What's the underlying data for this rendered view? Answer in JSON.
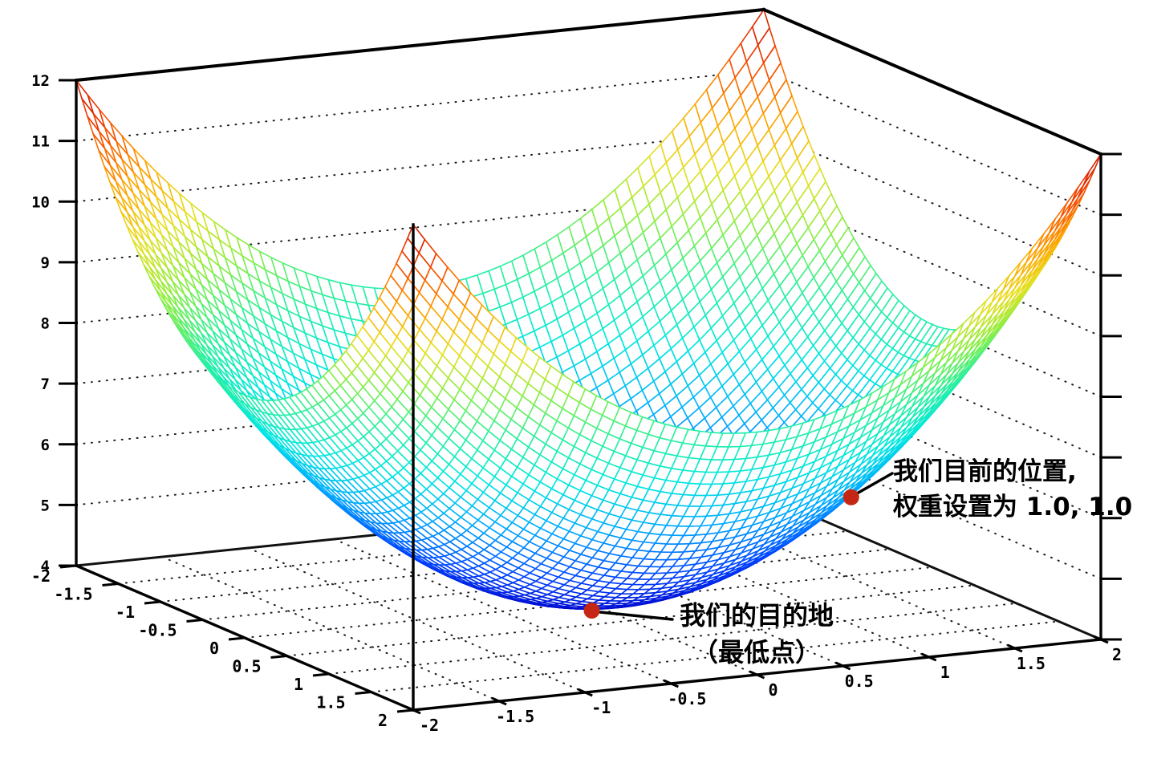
{
  "page": {
    "background": "#ffffff"
  },
  "chart_data": {
    "type": "surface",
    "title": "",
    "surface": {
      "formula": "z = x^2 + y^2 + 4",
      "x_range": [
        -2,
        2
      ],
      "y_range": [
        -2,
        2
      ],
      "z_range": [
        4,
        12
      ],
      "mesh_divisions": 60,
      "colormap": "jet",
      "colormap_stops": [
        [
          0.0,
          "#0000c8"
        ],
        [
          0.14,
          "#0044ff"
        ],
        [
          0.28,
          "#00aaff"
        ],
        [
          0.4,
          "#00e8e0"
        ],
        [
          0.52,
          "#2cf09c"
        ],
        [
          0.62,
          "#8cee44"
        ],
        [
          0.72,
          "#e8e020"
        ],
        [
          0.82,
          "#ffa000"
        ],
        [
          0.92,
          "#f44400"
        ],
        [
          1.0,
          "#c81400"
        ]
      ],
      "face_color": "#ffffff"
    },
    "axes": {
      "axis_color": "#000000",
      "grid_style": "dotted",
      "grid_color": "#1a1a1a",
      "z_ticks": {
        "values": [
          12,
          11,
          10,
          9,
          8,
          7,
          6,
          5,
          4
        ],
        "labels": [
          "12",
          "11",
          "10",
          "9",
          "8",
          "7",
          "6",
          "5",
          "4"
        ]
      },
      "y_ticks": {
        "values": [
          -2,
          -1.5,
          -1,
          -0.5,
          0,
          0.5,
          1,
          1.5,
          2
        ],
        "labels": [
          "-2",
          "-1.5",
          "-1",
          "-0.5",
          "0",
          "0.5",
          "1",
          "1.5",
          "2"
        ]
      },
      "x_ticks": {
        "values": [
          -2,
          -1.5,
          -1,
          -0.5,
          0,
          0.5,
          1,
          1.5,
          2
        ],
        "labels": [
          "-2",
          "-1.5",
          "-1",
          "-0.5",
          "0",
          "0.5",
          "1",
          "1.5",
          "2"
        ]
      }
    },
    "annotations": [
      {
        "id": "current-position",
        "marker": {
          "x": 1.0,
          "y": 1.0,
          "z": 6.0
        },
        "marker_color": "#c42814",
        "lines": [
          "我们目前的位置,",
          "权重设置为 1.0, 1.0"
        ]
      },
      {
        "id": "destination",
        "marker": {
          "x": 0.0,
          "y": 0.0,
          "z": 4.0
        },
        "marker_color": "#c42814",
        "lines": [
          "我们的目的地",
          "（最低点）"
        ]
      }
    ]
  }
}
